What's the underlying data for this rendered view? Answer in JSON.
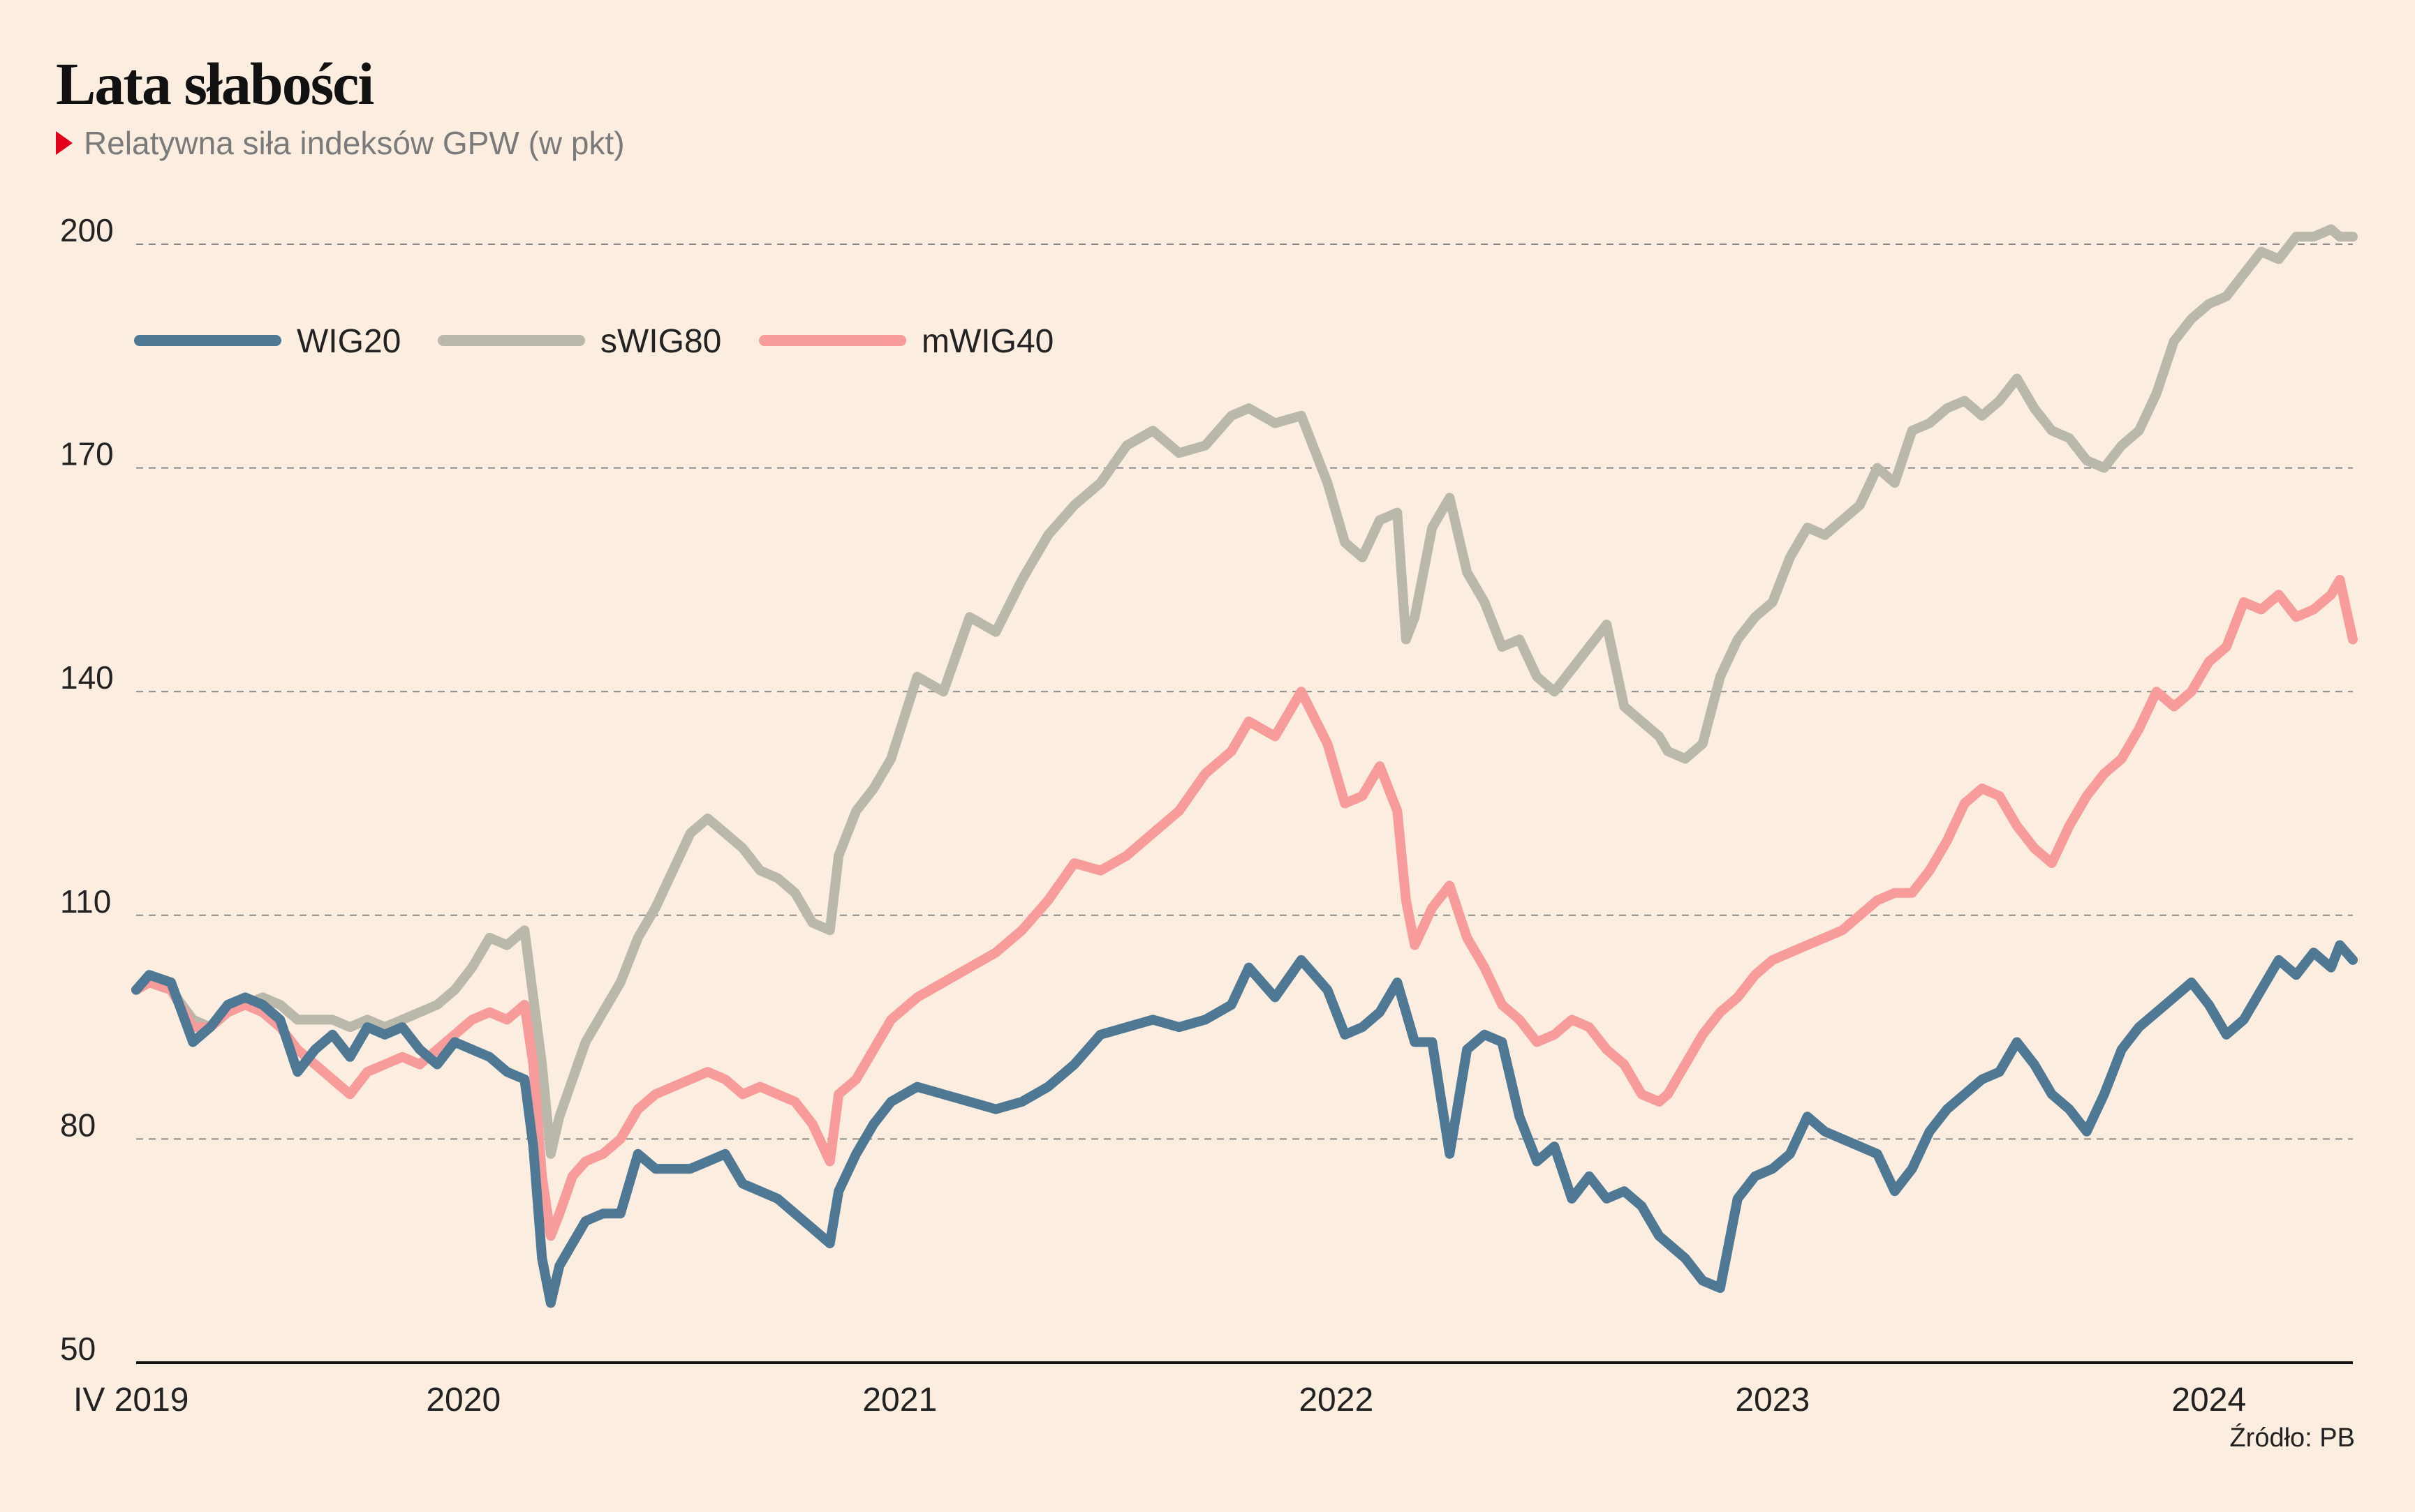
{
  "title": "Lata słabości",
  "subtitle": "Relatywna siła indeksów GPW (w pkt)",
  "source": "Źródło: PB",
  "colors": {
    "background": "#fbeee1",
    "accent": "#e3001b",
    "WIG20": "#4e7893",
    "sWIG80": "#bab8aa",
    "mWIG40": "#f79b9b"
  },
  "chart_data": {
    "type": "line",
    "title": "Lata słabości",
    "subtitle": "Relatywna siła indeksów GPW (w pkt)",
    "xlabel": "",
    "ylabel": "",
    "ylim": [
      50,
      200
    ],
    "yticks": [
      50,
      80,
      110,
      140,
      170,
      200
    ],
    "xlim": [
      2019.25,
      2024.33
    ],
    "xticks": [
      {
        "value": 2019.25,
        "label": "IV 2019"
      },
      {
        "value": 2020.0,
        "label": "2020"
      },
      {
        "value": 2021.0,
        "label": "2021"
      },
      {
        "value": 2022.0,
        "label": "2022"
      },
      {
        "value": 2023.0,
        "label": "2023"
      },
      {
        "value": 2024.0,
        "label": "2024"
      }
    ],
    "grid": "horizontal dashed",
    "legend": "top-left",
    "series": [
      {
        "name": "WIG20",
        "color": "#4e7893",
        "x": [
          2019.25,
          2019.28,
          2019.33,
          2019.38,
          2019.42,
          2019.46,
          2019.5,
          2019.54,
          2019.58,
          2019.62,
          2019.66,
          2019.7,
          2019.74,
          2019.78,
          2019.82,
          2019.86,
          2019.9,
          2019.94,
          2019.98,
          2020.02,
          2020.06,
          2020.1,
          2020.14,
          2020.16,
          2020.18,
          2020.2,
          2020.22,
          2020.25,
          2020.28,
          2020.32,
          2020.36,
          2020.4,
          2020.44,
          2020.48,
          2020.52,
          2020.56,
          2020.6,
          2020.64,
          2020.68,
          2020.72,
          2020.76,
          2020.8,
          2020.84,
          2020.86,
          2020.9,
          2020.94,
          2020.98,
          2021.04,
          2021.1,
          2021.16,
          2021.22,
          2021.28,
          2021.34,
          2021.4,
          2021.46,
          2021.52,
          2021.58,
          2021.64,
          2021.7,
          2021.76,
          2021.8,
          2021.86,
          2021.92,
          2021.98,
          2022.02,
          2022.06,
          2022.1,
          2022.14,
          2022.16,
          2022.18,
          2022.22,
          2022.26,
          2022.3,
          2022.34,
          2022.38,
          2022.42,
          2022.46,
          2022.5,
          2022.54,
          2022.58,
          2022.62,
          2022.66,
          2022.7,
          2022.74,
          2022.76,
          2022.8,
          2022.84,
          2022.88,
          2022.92,
          2022.96,
          2023.0,
          2023.04,
          2023.08,
          2023.12,
          2023.16,
          2023.2,
          2023.24,
          2023.28,
          2023.32,
          2023.36,
          2023.4,
          2023.44,
          2023.48,
          2023.52,
          2023.56,
          2023.6,
          2023.64,
          2023.68,
          2023.72,
          2023.76,
          2023.8,
          2023.84,
          2023.88,
          2023.92,
          2023.96,
          2024.0,
          2024.04,
          2024.08,
          2024.12,
          2024.16,
          2024.2,
          2024.24,
          2024.28,
          2024.3,
          2024.33
        ],
        "y": [
          100,
          102,
          101,
          93,
          95,
          98,
          99,
          98,
          96,
          89,
          92,
          94,
          91,
          95,
          94,
          95,
          92,
          90,
          93,
          92,
          91,
          89,
          88,
          79,
          64,
          58,
          63,
          66,
          69,
          70,
          70,
          78,
          76,
          76,
          76,
          77,
          78,
          74,
          73,
          72,
          70,
          68,
          66,
          73,
          78,
          82,
          85,
          87,
          86,
          85,
          84,
          85,
          87,
          90,
          94,
          95,
          96,
          95,
          96,
          98,
          103,
          99,
          104,
          100,
          94,
          95,
          97,
          101,
          97,
          93,
          93,
          78,
          92,
          94,
          93,
          83,
          77,
          79,
          72,
          75,
          72,
          73,
          71,
          67,
          66,
          64,
          61,
          60,
          72,
          75,
          76,
          78,
          83,
          81,
          80,
          79,
          78,
          73,
          76,
          81,
          84,
          86,
          88,
          89,
          93,
          90,
          86,
          84,
          81,
          86,
          92,
          95,
          97,
          99,
          101,
          98,
          94,
          96,
          100,
          104,
          102,
          105,
          103,
          106,
          104
        ]
      },
      {
        "name": "sWIG80",
        "color": "#bab8aa",
        "x": [
          2019.25,
          2019.28,
          2019.33,
          2019.38,
          2019.42,
          2019.46,
          2019.5,
          2019.54,
          2019.58,
          2019.62,
          2019.66,
          2019.7,
          2019.74,
          2019.78,
          2019.82,
          2019.86,
          2019.9,
          2019.94,
          2019.98,
          2020.02,
          2020.06,
          2020.1,
          2020.14,
          2020.16,
          2020.18,
          2020.2,
          2020.22,
          2020.25,
          2020.28,
          2020.32,
          2020.36,
          2020.4,
          2020.44,
          2020.48,
          2020.52,
          2020.56,
          2020.6,
          2020.64,
          2020.68,
          2020.72,
          2020.76,
          2020.8,
          2020.84,
          2020.86,
          2020.9,
          2020.94,
          2020.98,
          2021.04,
          2021.1,
          2021.16,
          2021.22,
          2021.28,
          2021.34,
          2021.4,
          2021.46,
          2021.52,
          2021.58,
          2021.64,
          2021.7,
          2021.76,
          2021.8,
          2021.86,
          2021.92,
          2021.98,
          2022.02,
          2022.06,
          2022.1,
          2022.14,
          2022.16,
          2022.18,
          2022.22,
          2022.26,
          2022.3,
          2022.34,
          2022.38,
          2022.42,
          2022.46,
          2022.5,
          2022.54,
          2022.58,
          2022.62,
          2022.66,
          2022.7,
          2022.74,
          2022.76,
          2022.8,
          2022.84,
          2022.88,
          2022.92,
          2022.96,
          2023.0,
          2023.04,
          2023.08,
          2023.12,
          2023.16,
          2023.2,
          2023.24,
          2023.28,
          2023.32,
          2023.36,
          2023.4,
          2023.44,
          2023.48,
          2023.52,
          2023.56,
          2023.6,
          2023.64,
          2023.68,
          2023.72,
          2023.76,
          2023.8,
          2023.84,
          2023.88,
          2023.92,
          2023.96,
          2024.0,
          2024.04,
          2024.08,
          2024.12,
          2024.16,
          2024.2,
          2024.24,
          2024.28,
          2024.3,
          2024.33
        ],
        "y": [
          100,
          101,
          100,
          96,
          95,
          97,
          98,
          99,
          98,
          96,
          96,
          96,
          95,
          96,
          95,
          96,
          97,
          98,
          100,
          103,
          107,
          106,
          108,
          99,
          90,
          78,
          83,
          88,
          93,
          97,
          101,
          107,
          111,
          116,
          121,
          123,
          121,
          119,
          116,
          115,
          113,
          109,
          108,
          118,
          124,
          127,
          131,
          142,
          140,
          150,
          148,
          155,
          161,
          165,
          168,
          173,
          175,
          172,
          173,
          177,
          178,
          176,
          177,
          168,
          160,
          158,
          163,
          164,
          147,
          150,
          162,
          166,
          156,
          152,
          146,
          147,
          142,
          140,
          143,
          146,
          149,
          138,
          136,
          134,
          132,
          131,
          133,
          142,
          147,
          150,
          152,
          158,
          162,
          161,
          163,
          165,
          170,
          168,
          175,
          176,
          178,
          179,
          177,
          179,
          182,
          178,
          175,
          174,
          171,
          170,
          173,
          175,
          180,
          187,
          190,
          192,
          193,
          196,
          199,
          198,
          201,
          201,
          202,
          201,
          201
        ]
      },
      {
        "name": "mWIG40",
        "color": "#f79b9b",
        "x": [
          2019.25,
          2019.28,
          2019.33,
          2019.38,
          2019.42,
          2019.46,
          2019.5,
          2019.54,
          2019.58,
          2019.62,
          2019.66,
          2019.7,
          2019.74,
          2019.78,
          2019.82,
          2019.86,
          2019.9,
          2019.94,
          2019.98,
          2020.02,
          2020.06,
          2020.1,
          2020.14,
          2020.16,
          2020.18,
          2020.2,
          2020.22,
          2020.25,
          2020.28,
          2020.32,
          2020.36,
          2020.4,
          2020.44,
          2020.48,
          2020.52,
          2020.56,
          2020.6,
          2020.64,
          2020.68,
          2020.72,
          2020.76,
          2020.8,
          2020.84,
          2020.86,
          2020.9,
          2020.94,
          2020.98,
          2021.04,
          2021.1,
          2021.16,
          2021.22,
          2021.28,
          2021.34,
          2021.4,
          2021.46,
          2021.52,
          2021.58,
          2021.64,
          2021.7,
          2021.76,
          2021.8,
          2021.86,
          2021.92,
          2021.98,
          2022.02,
          2022.06,
          2022.1,
          2022.14,
          2022.16,
          2022.18,
          2022.22,
          2022.26,
          2022.3,
          2022.34,
          2022.38,
          2022.42,
          2022.46,
          2022.5,
          2022.54,
          2022.58,
          2022.62,
          2022.66,
          2022.7,
          2022.74,
          2022.76,
          2022.8,
          2022.84,
          2022.88,
          2022.92,
          2022.96,
          2023.0,
          2023.04,
          2023.08,
          2023.12,
          2023.16,
          2023.2,
          2023.24,
          2023.28,
          2023.32,
          2023.36,
          2023.4,
          2023.44,
          2023.48,
          2023.52,
          2023.56,
          2023.6,
          2023.64,
          2023.68,
          2023.72,
          2023.76,
          2023.8,
          2023.84,
          2023.88,
          2023.92,
          2023.96,
          2024.0,
          2024.04,
          2024.08,
          2024.12,
          2024.16,
          2024.2,
          2024.24,
          2024.28,
          2024.3,
          2024.33
        ],
        "y": [
          100,
          101,
          100,
          95,
          95,
          97,
          98,
          97,
          95,
          92,
          90,
          88,
          86,
          89,
          90,
          91,
          90,
          92,
          94,
          96,
          97,
          96,
          98,
          90,
          75,
          67,
          70,
          75,
          77,
          78,
          80,
          84,
          86,
          87,
          88,
          89,
          88,
          86,
          87,
          86,
          85,
          82,
          77,
          86,
          88,
          92,
          96,
          99,
          101,
          103,
          105,
          108,
          112,
          117,
          116,
          118,
          121,
          124,
          129,
          132,
          136,
          134,
          140,
          133,
          125,
          126,
          130,
          124,
          112,
          106,
          111,
          114,
          107,
          103,
          98,
          96,
          93,
          94,
          96,
          95,
          92,
          90,
          86,
          85,
          86,
          90,
          94,
          97,
          99,
          102,
          104,
          105,
          106,
          107,
          108,
          110,
          112,
          113,
          113,
          116,
          120,
          125,
          127,
          126,
          122,
          119,
          117,
          122,
          126,
          129,
          131,
          135,
          140,
          138,
          140,
          144,
          146,
          152,
          151,
          153,
          150,
          151,
          153,
          155,
          147
        ]
      }
    ]
  }
}
